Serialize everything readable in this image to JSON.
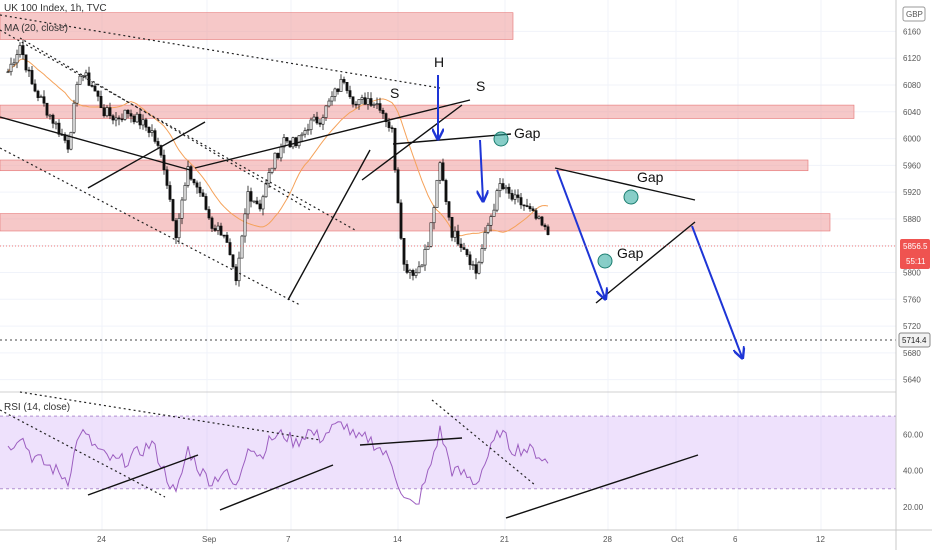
{
  "header": {
    "symbol_line": "UK 100 Index, 1h, TVC",
    "ma_line": "MA (20, close)",
    "rsi_line": "RSI (14, close)",
    "currency_badge": "GBP"
  },
  "colors": {
    "up": "#26a69a",
    "candle_body": "#111111",
    "ma": "#f5a25a",
    "rsi": "#9c5ec0",
    "zone_fill": "rgba(239,154,154,0.55)",
    "zone_stroke": "#e57373",
    "trend": "#111111",
    "arrow": "#1e35d6",
    "last_price_bg": "#ef5350",
    "rsi_band": "rgba(206,170,245,0.35)"
  },
  "chart_data": [
    {
      "type": "candlestick",
      "title": "UK 100 Index, 1h, TVC",
      "y_ticks": [
        6160,
        6120,
        6080,
        6040,
        6000,
        5960,
        5920,
        5880,
        5840,
        5800,
        5760,
        5720,
        5680,
        5640
      ],
      "ylim": [
        5632,
        6195
      ],
      "x_ticks": [
        "24",
        "Sep",
        "7",
        "14",
        "21",
        "28",
        "Oct",
        "6",
        "12"
      ],
      "last_price": "5856.5",
      "countdown": "55:11",
      "target_price": "5714.4",
      "resistance_zones": [
        [
          6148,
          6188
        ],
        [
          6030,
          6050
        ],
        [
          5952,
          5968
        ],
        [
          5862,
          5888
        ]
      ],
      "annotations": [
        "H",
        "S",
        "S",
        "Gap",
        "Gap",
        "Gap"
      ],
      "series": [
        {
          "name": "UK 100 Index",
          "close_path": [
            [
              "Aug 19",
              6100
            ],
            [
              "Aug 20",
              6140
            ],
            [
              "Aug 21",
              6080
            ],
            [
              "Aug 23",
              6020
            ],
            [
              "Aug 24",
              5990
            ],
            [
              "Aug 25",
              6100
            ],
            [
              "Aug 26",
              6080
            ],
            [
              "Aug 27",
              6040
            ],
            [
              "Aug 28",
              6030
            ],
            [
              "Aug 29",
              6040
            ],
            [
              "Aug 31",
              6010
            ],
            [
              "Sep 1",
              5960
            ],
            [
              "Sep 2",
              5860
            ],
            [
              "Sep 3",
              5950
            ],
            [
              "Sep 4",
              5920
            ],
            [
              "Sep 5",
              5870
            ],
            [
              "Sep 6",
              5860
            ],
            [
              "Sep 7",
              5780
            ],
            [
              "Sep 8",
              5920
            ],
            [
              "Sep 9",
              5900
            ],
            [
              "Sep 10",
              5960
            ],
            [
              "Sep 11",
              6000
            ],
            [
              "Sep 12",
              5990
            ],
            [
              "Sep 13",
              6020
            ],
            [
              "Sep 14",
              6030
            ],
            [
              "Sep 15",
              6060
            ],
            [
              "Sep 16",
              6090
            ],
            [
              "Sep 17",
              6050
            ],
            [
              "Sep 18",
              6060
            ],
            [
              "Sep 19",
              6050
            ],
            [
              "Sep 20",
              6010
            ],
            [
              "Sep 21",
              5810
            ],
            [
              "Sep 22",
              5800
            ],
            [
              "Sep 23",
              5840
            ],
            [
              "Sep 24",
              5960
            ],
            [
              "Sep 25",
              5860
            ],
            [
              "Sep 26",
              5840
            ],
            [
              "Sep 27",
              5800
            ],
            [
              "Sep 28",
              5870
            ],
            [
              "Sep 29",
              5930
            ],
            [
              "Sep 30",
              5910
            ],
            [
              "Oct 1",
              5900
            ],
            [
              "Oct 2",
              5880
            ],
            [
              "Oct 3",
              5856.5
            ]
          ]
        }
      ]
    },
    {
      "type": "line",
      "title": "RSI (14, close)",
      "y_ticks": [
        60.0,
        40.0,
        20.0
      ],
      "ylim": [
        10,
        80
      ],
      "band": [
        30,
        70
      ],
      "series": [
        {
          "name": "RSI",
          "values": [
            [
              "Aug 19",
              52
            ],
            [
              "Aug 20",
              60
            ],
            [
              "Aug 21",
              48
            ],
            [
              "Aug 23",
              40
            ],
            [
              "Aug 24",
              35
            ],
            [
              "Aug 25",
              62
            ],
            [
              "Aug 26",
              55
            ],
            [
              "Aug 27",
              48
            ],
            [
              "Aug 28",
              45
            ],
            [
              "Aug 29",
              46
            ],
            [
              "Aug 31",
              55
            ],
            [
              "Sep 1",
              40
            ],
            [
              "Sep 2",
              26
            ],
            [
              "Sep 3",
              52
            ],
            [
              "Sep 4",
              40
            ],
            [
              "Sep 5",
              34
            ],
            [
              "Sep 6",
              40
            ],
            [
              "Sep 7",
              30
            ],
            [
              "Sep 8",
              55
            ],
            [
              "Sep 9",
              48
            ],
            [
              "Sep 10",
              58
            ],
            [
              "Sep 11",
              60
            ],
            [
              "Sep 12",
              55
            ],
            [
              "Sep 13",
              62
            ],
            [
              "Sep 14",
              58
            ],
            [
              "Sep 15",
              63
            ],
            [
              "Sep 16",
              66
            ],
            [
              "Sep 17",
              57
            ],
            [
              "Sep 18",
              58
            ],
            [
              "Sep 19",
              52
            ],
            [
              "Sep 20",
              44
            ],
            [
              "Sep 21",
              24
            ],
            [
              "Sep 22",
              20
            ],
            [
              "Sep 23",
              38
            ],
            [
              "Sep 24",
              62
            ],
            [
              "Sep 25",
              40
            ],
            [
              "Sep 26",
              38
            ],
            [
              "Sep 27",
              33
            ],
            [
              "Sep 28",
              48
            ],
            [
              "Sep 29",
              62
            ],
            [
              "Sep 30",
              52
            ],
            [
              "Oct 1",
              52
            ],
            [
              "Oct 2",
              50
            ],
            [
              "Oct 3",
              44
            ]
          ]
        }
      ]
    }
  ]
}
